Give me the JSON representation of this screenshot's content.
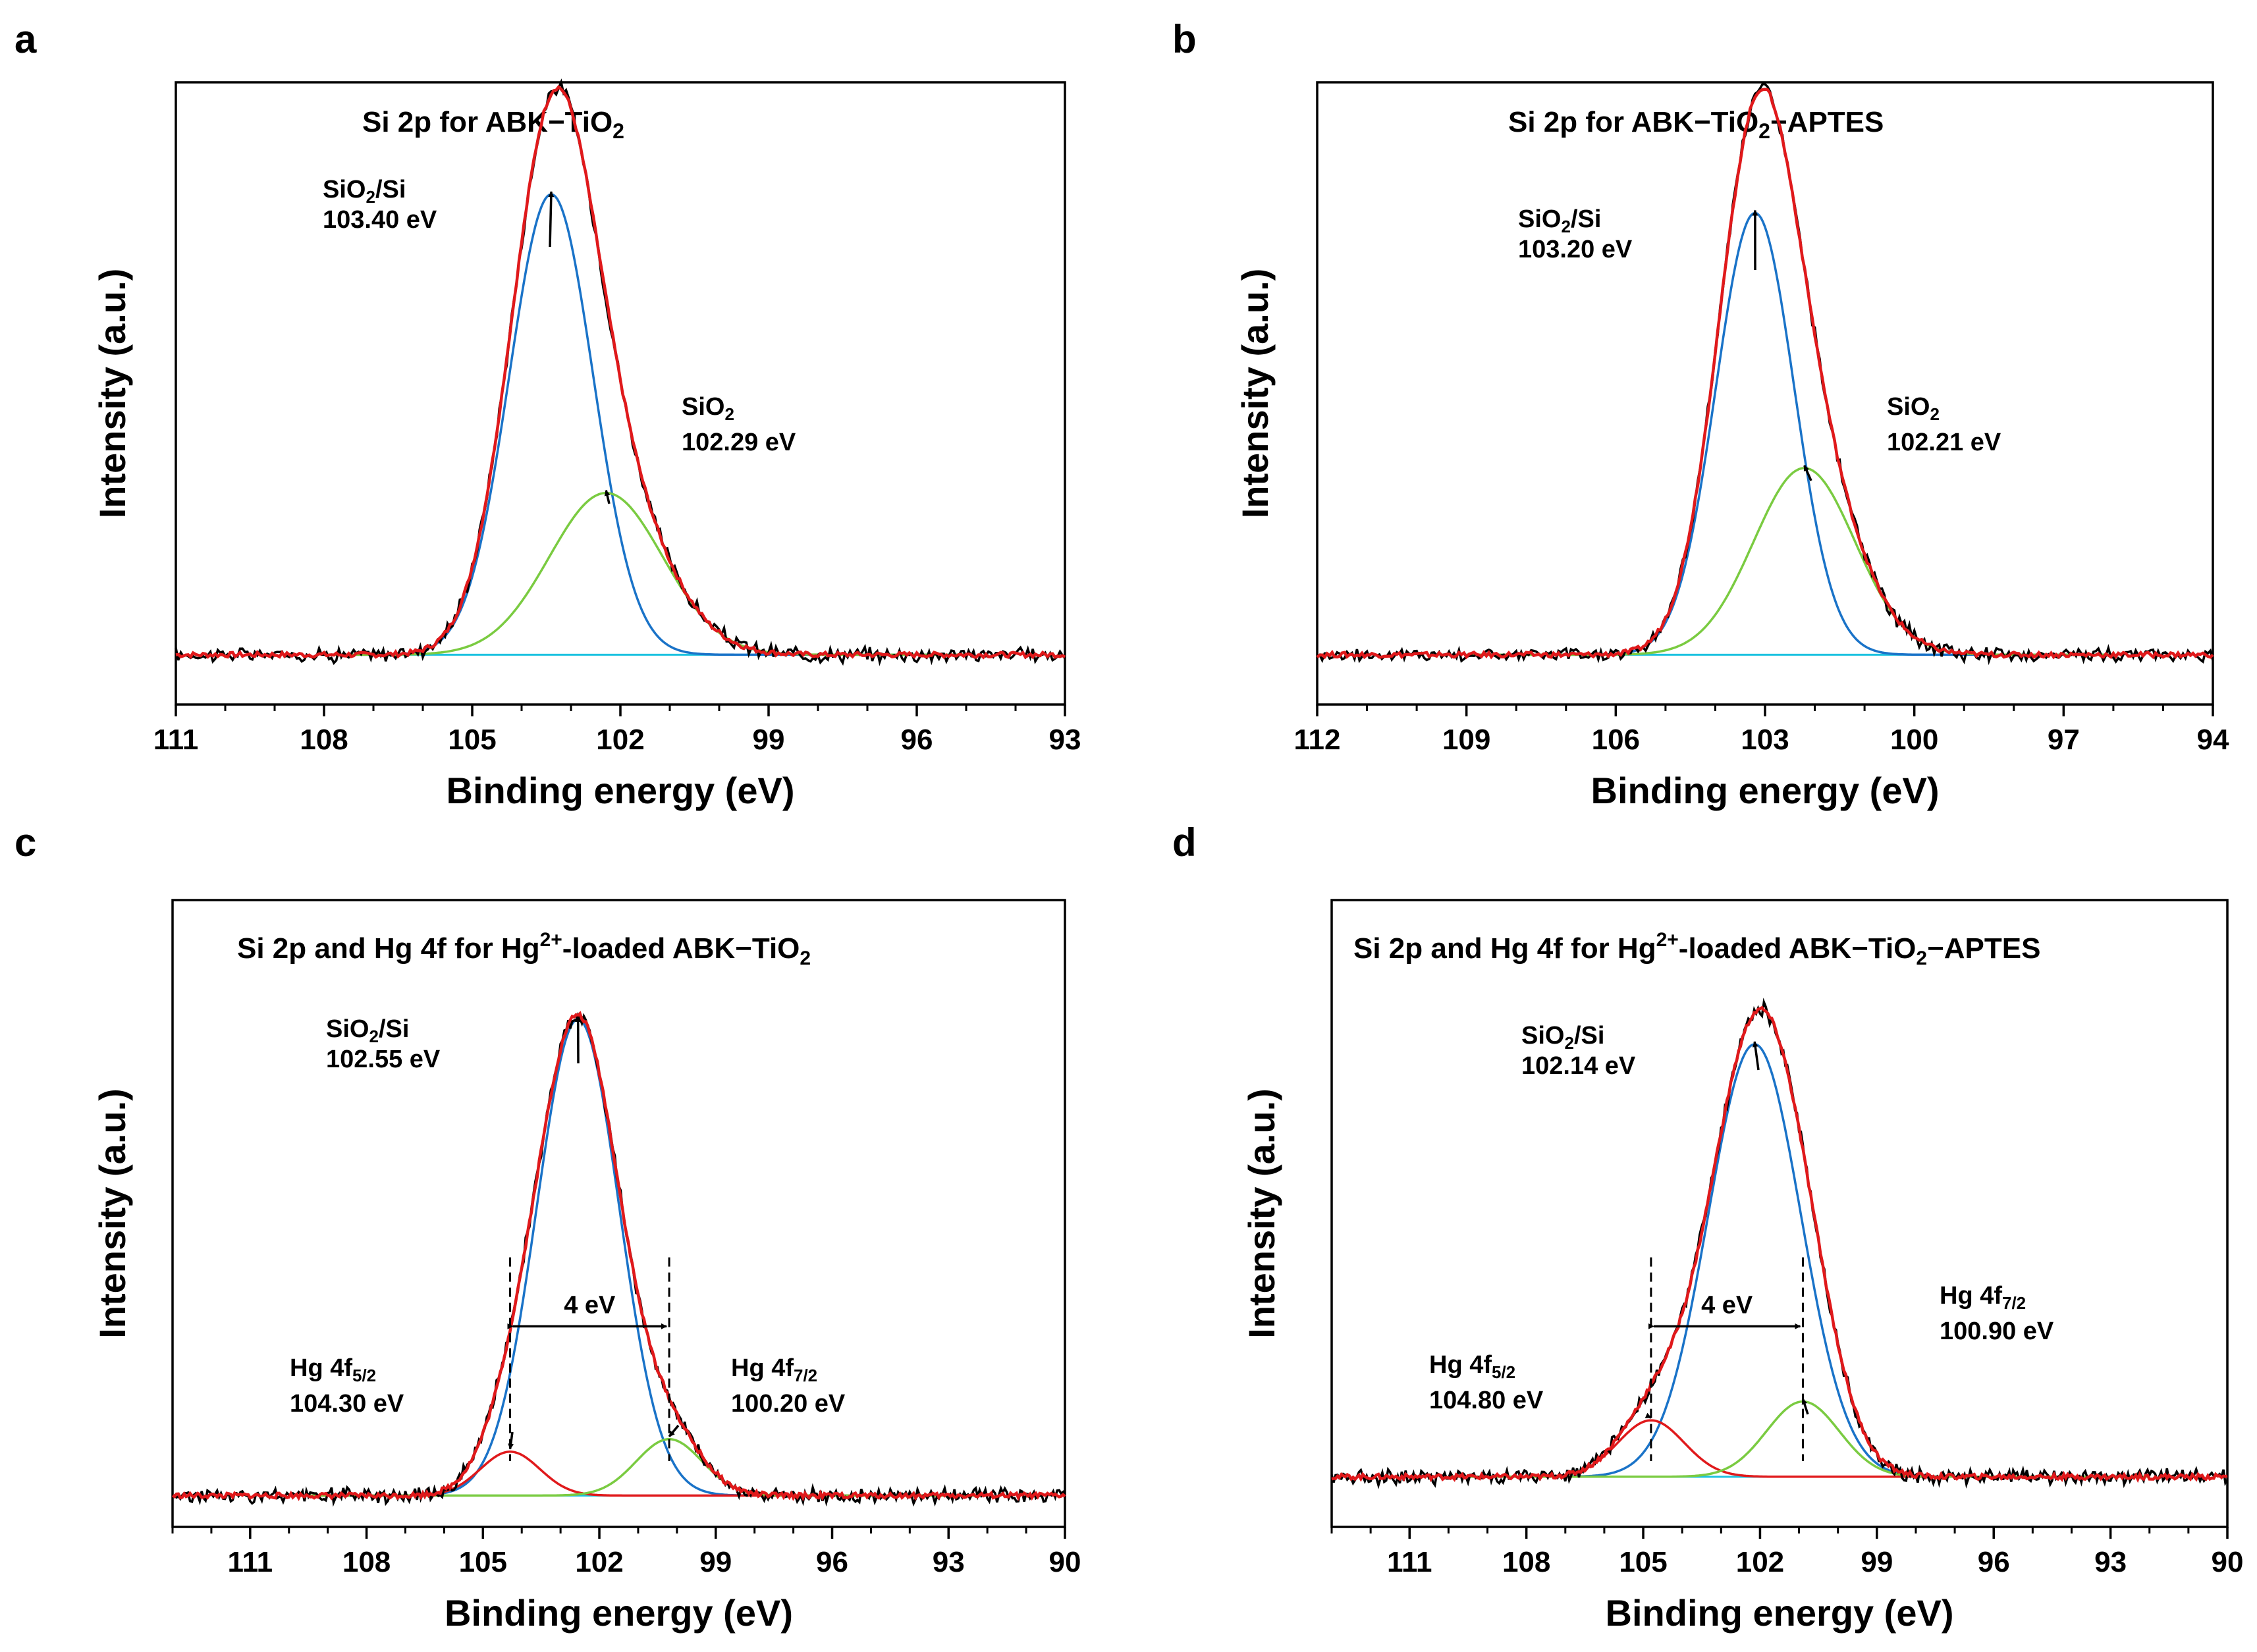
{
  "colors": {
    "raw": "#000000",
    "envelope": "#e0191b",
    "sio2_si": "#1a73c8",
    "sio2": "#7acb41",
    "hg_4f52": "#e0191b",
    "hg_4f72": "#7acb41",
    "baseline": "#1cc2e0"
  },
  "chart_data": [
    {
      "panel": "a",
      "type": "line",
      "title": "Si 2p for ABK−TiO",
      "title_sub": "2",
      "xlabel": "Binding energy (eV)",
      "ylabel": "Intensity (a.u.)",
      "xlim": [
        111,
        93
      ],
      "xticks": [
        111,
        108,
        105,
        102,
        99,
        96,
        93
      ],
      "ylim": [
        0,
        1
      ],
      "baseline": 0.08,
      "peaks": [
        {
          "name": "SiO2/Si",
          "center": 103.4,
          "amplitude": 0.74,
          "fwhm": 2.0,
          "component": "sio2_si"
        },
        {
          "name": "SiO2",
          "center": 102.29,
          "amplitude": 0.26,
          "fwhm": 2.7,
          "component": "sio2"
        }
      ],
      "annotations": [
        {
          "lines": [
            {
              "t": "SiO",
              "s": "2",
              "a": "/Si"
            },
            {
              "t": "103.40 eV"
            }
          ],
          "peak": 0
        },
        {
          "lines": [
            {
              "t": "SiO",
              "s": "2"
            },
            {
              "t": "102.29 eV"
            }
          ],
          "peak": 1
        }
      ]
    },
    {
      "panel": "b",
      "type": "line",
      "title": "Si 2p for ABK−TiO",
      "title_sub": "2",
      "title_after": "−APTES",
      "xlabel": "Binding energy (eV)",
      "ylabel": "Intensity (a.u.)",
      "xlim": [
        112,
        94
      ],
      "xticks": [
        112,
        109,
        106,
        103,
        100,
        97,
        94
      ],
      "ylim": [
        0,
        1
      ],
      "baseline": 0.08,
      "peaks": [
        {
          "name": "SiO2/Si",
          "center": 103.2,
          "amplitude": 0.71,
          "fwhm": 1.85,
          "component": "sio2_si"
        },
        {
          "name": "SiO2",
          "center": 102.21,
          "amplitude": 0.3,
          "fwhm": 2.4,
          "component": "sio2"
        }
      ],
      "annotations": [
        {
          "lines": [
            {
              "t": "SiO",
              "s": "2",
              "a": "/Si"
            },
            {
              "t": "103.20 eV"
            }
          ],
          "peak": 0
        },
        {
          "lines": [
            {
              "t": "SiO",
              "s": "2"
            },
            {
              "t": "102.21 eV"
            }
          ],
          "peak": 1
        }
      ]
    },
    {
      "panel": "c",
      "type": "line",
      "title": "Si 2p and Hg 4f for Hg",
      "title_sup": "2+",
      "title_after": "-loaded ABK−TiO",
      "title_sub": "2",
      "xlabel": "Binding energy (eV)",
      "ylabel": "Intensity (a.u.)",
      "xlim": [
        113,
        90
      ],
      "xticks": [
        111,
        108,
        105,
        102,
        99,
        96,
        93,
        90
      ],
      "ylim": [
        0,
        1
      ],
      "baseline": 0.05,
      "peaks": [
        {
          "name": "SiO2/Si",
          "center": 102.55,
          "amplitude": 0.76,
          "fwhm": 2.5,
          "component": "sio2_si"
        },
        {
          "name": "Hg 4f5/2",
          "center": 104.3,
          "amplitude": 0.07,
          "fwhm": 1.8,
          "component": "hg_4f52"
        },
        {
          "name": "Hg 4f7/2",
          "center": 100.2,
          "amplitude": 0.09,
          "fwhm": 2.0,
          "component": "hg_4f72"
        }
      ],
      "spacing": {
        "label": "4 eV",
        "from": 104.3,
        "to": 100.2
      },
      "annotations": [
        {
          "lines": [
            {
              "t": "SiO",
              "s": "2",
              "a": "/Si"
            },
            {
              "t": "102.55 eV"
            }
          ],
          "peak": 0
        },
        {
          "lines": [
            {
              "t": "Hg 4f",
              "s": "5/2"
            },
            {
              "t": "104.30 eV"
            }
          ],
          "peak": 1
        },
        {
          "lines": [
            {
              "t": "Hg 4f",
              "s": "7/2"
            },
            {
              "t": "100.20 eV"
            }
          ],
          "peak": 2
        }
      ]
    },
    {
      "panel": "d",
      "type": "line",
      "title": "Si 2p and Hg 4f for Hg",
      "title_sup": "2+",
      "title_after": "-loaded ABK−TiO",
      "title_sub": "2",
      "title_end": "−APTES",
      "xlabel": "Binding energy (eV)",
      "ylabel": "Intensity (a.u.)",
      "xlim": [
        113,
        90
      ],
      "xticks": [
        111,
        108,
        105,
        102,
        99,
        96,
        93,
        90
      ],
      "ylim": [
        0,
        1
      ],
      "baseline": 0.08,
      "peaks": [
        {
          "name": "SiO2/Si",
          "center": 102.14,
          "amplitude": 0.69,
          "fwhm": 2.8,
          "component": "sio2_si"
        },
        {
          "name": "Hg 4f5/2",
          "center": 104.8,
          "amplitude": 0.09,
          "fwhm": 2.0,
          "component": "hg_4f52"
        },
        {
          "name": "Hg 4f7/2",
          "center": 100.9,
          "amplitude": 0.12,
          "fwhm": 2.2,
          "component": "hg_4f72"
        }
      ],
      "spacing": {
        "label": "4 eV",
        "from": 104.8,
        "to": 100.9
      },
      "annotations": [
        {
          "lines": [
            {
              "t": "SiO",
              "s": "2",
              "a": "/Si"
            },
            {
              "t": "102.14 eV"
            }
          ],
          "peak": 0
        },
        {
          "lines": [
            {
              "t": "Hg 4f",
              "s": "5/2"
            },
            {
              "t": "104.80 eV"
            }
          ],
          "peak": 1
        },
        {
          "lines": [
            {
              "t": "Hg 4f",
              "s": "7/2"
            },
            {
              "t": "100.90 eV"
            }
          ],
          "peak": 2
        }
      ]
    }
  ]
}
